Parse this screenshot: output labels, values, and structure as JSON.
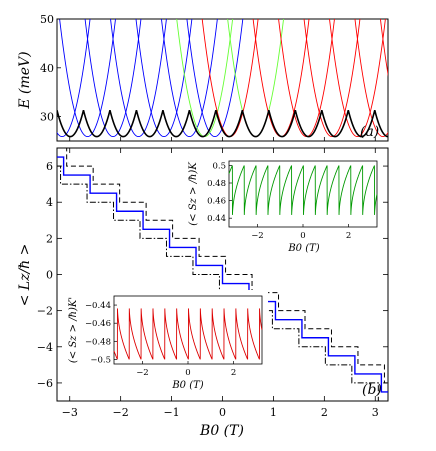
{
  "chart_data": [
    {
      "panel_label": "(a)",
      "type": "line",
      "ylabel": "E (meV)",
      "ylim": [
        25,
        50
      ],
      "xlim": [
        -3.25,
        3.25
      ],
      "yticks": [
        "30",
        "40",
        "50"
      ],
      "grid": false,
      "description_series": [
        {
          "color": "#0000ff",
          "parabola_centers": [
            -3.15,
            -2.65,
            -2.15,
            -1.65,
            -1.15,
            -0.65,
            -0.15
          ]
        },
        {
          "color": "#66ff33",
          "parabola_centers": [
            -0.35,
            0.65
          ]
        },
        {
          "color": "#ff0000",
          "parabola_centers": [
            0.15,
            1.15,
            1.65,
            2.15,
            2.65,
            3.15,
            3.65
          ]
        },
        {
          "color": "#000000",
          "type": "lower-envelope",
          "min": 25.9,
          "max": 28.1
        }
      ]
    },
    {
      "panel_label": "(b)",
      "type": "line",
      "xlabel": "B0 (T)",
      "ylabel": "< Lz/ħ >",
      "xlim": [
        -3.25,
        3.25
      ],
      "ylim": [
        -7,
        7
      ],
      "xticks": [
        "−3",
        "−2",
        "−1",
        "0",
        "1",
        "2",
        "3"
      ],
      "yticks": [
        "6",
        "4",
        "2",
        "0",
        "−2",
        "−4",
        "−6"
      ],
      "grid": false,
      "step_width_T": 0.52,
      "series": [
        {
          "style": "solid",
          "color": "#0000ff",
          "step_edges": [
            -3.12,
            -2.6,
            -2.08,
            -1.56,
            -1.04,
            -0.52,
            0.0,
            0.52,
            1.04,
            1.56,
            2.08,
            2.6,
            3.12
          ],
          "plateau_values": [
            6.5,
            5.5,
            4.5,
            3.5,
            2.5,
            1.5,
            0.5,
            -0.5,
            -1.5,
            -2.5,
            -3.5,
            -4.5,
            -5.5,
            -6.5
          ]
        },
        {
          "style": "dashed",
          "color": "#000000",
          "offset": 0.5
        },
        {
          "style": "dash-dot",
          "color": "#000000",
          "offset": -0.5
        }
      ]
    },
    {
      "panel_label": "inset-K",
      "type": "line",
      "xlabel": "B0 (T)",
      "ylabel": "(< Sz > /ħ)K",
      "xlim": [
        -3.25,
        3.25
      ],
      "ylim": [
        0.43,
        0.505
      ],
      "xticks": [
        "−2",
        "0",
        "2"
      ],
      "yticks": [
        "0.5",
        "0.48",
        "0.46",
        "0.44"
      ],
      "series": [
        {
          "color": "#009900",
          "type": "sawtooth",
          "period_T": 0.52,
          "min": 0.44,
          "max": 0.5,
          "rising": "sqrt"
        }
      ]
    },
    {
      "panel_label": "inset-K'",
      "type": "line",
      "xlabel": "B0 (T)",
      "ylabel": "(< Sz > /ħ)K'",
      "xlim": [
        -3.25,
        3.25
      ],
      "ylim": [
        -0.505,
        -0.43
      ],
      "xticks": [
        "−2",
        "0",
        "2"
      ],
      "yticks": [
        "−0.44",
        "−0.46",
        "−0.48",
        "−0.5"
      ],
      "series": [
        {
          "color": "#dd0000",
          "type": "sawtooth",
          "period_T": 0.52,
          "min": -0.5,
          "max": -0.44,
          "falling": "sqrt"
        }
      ]
    }
  ]
}
